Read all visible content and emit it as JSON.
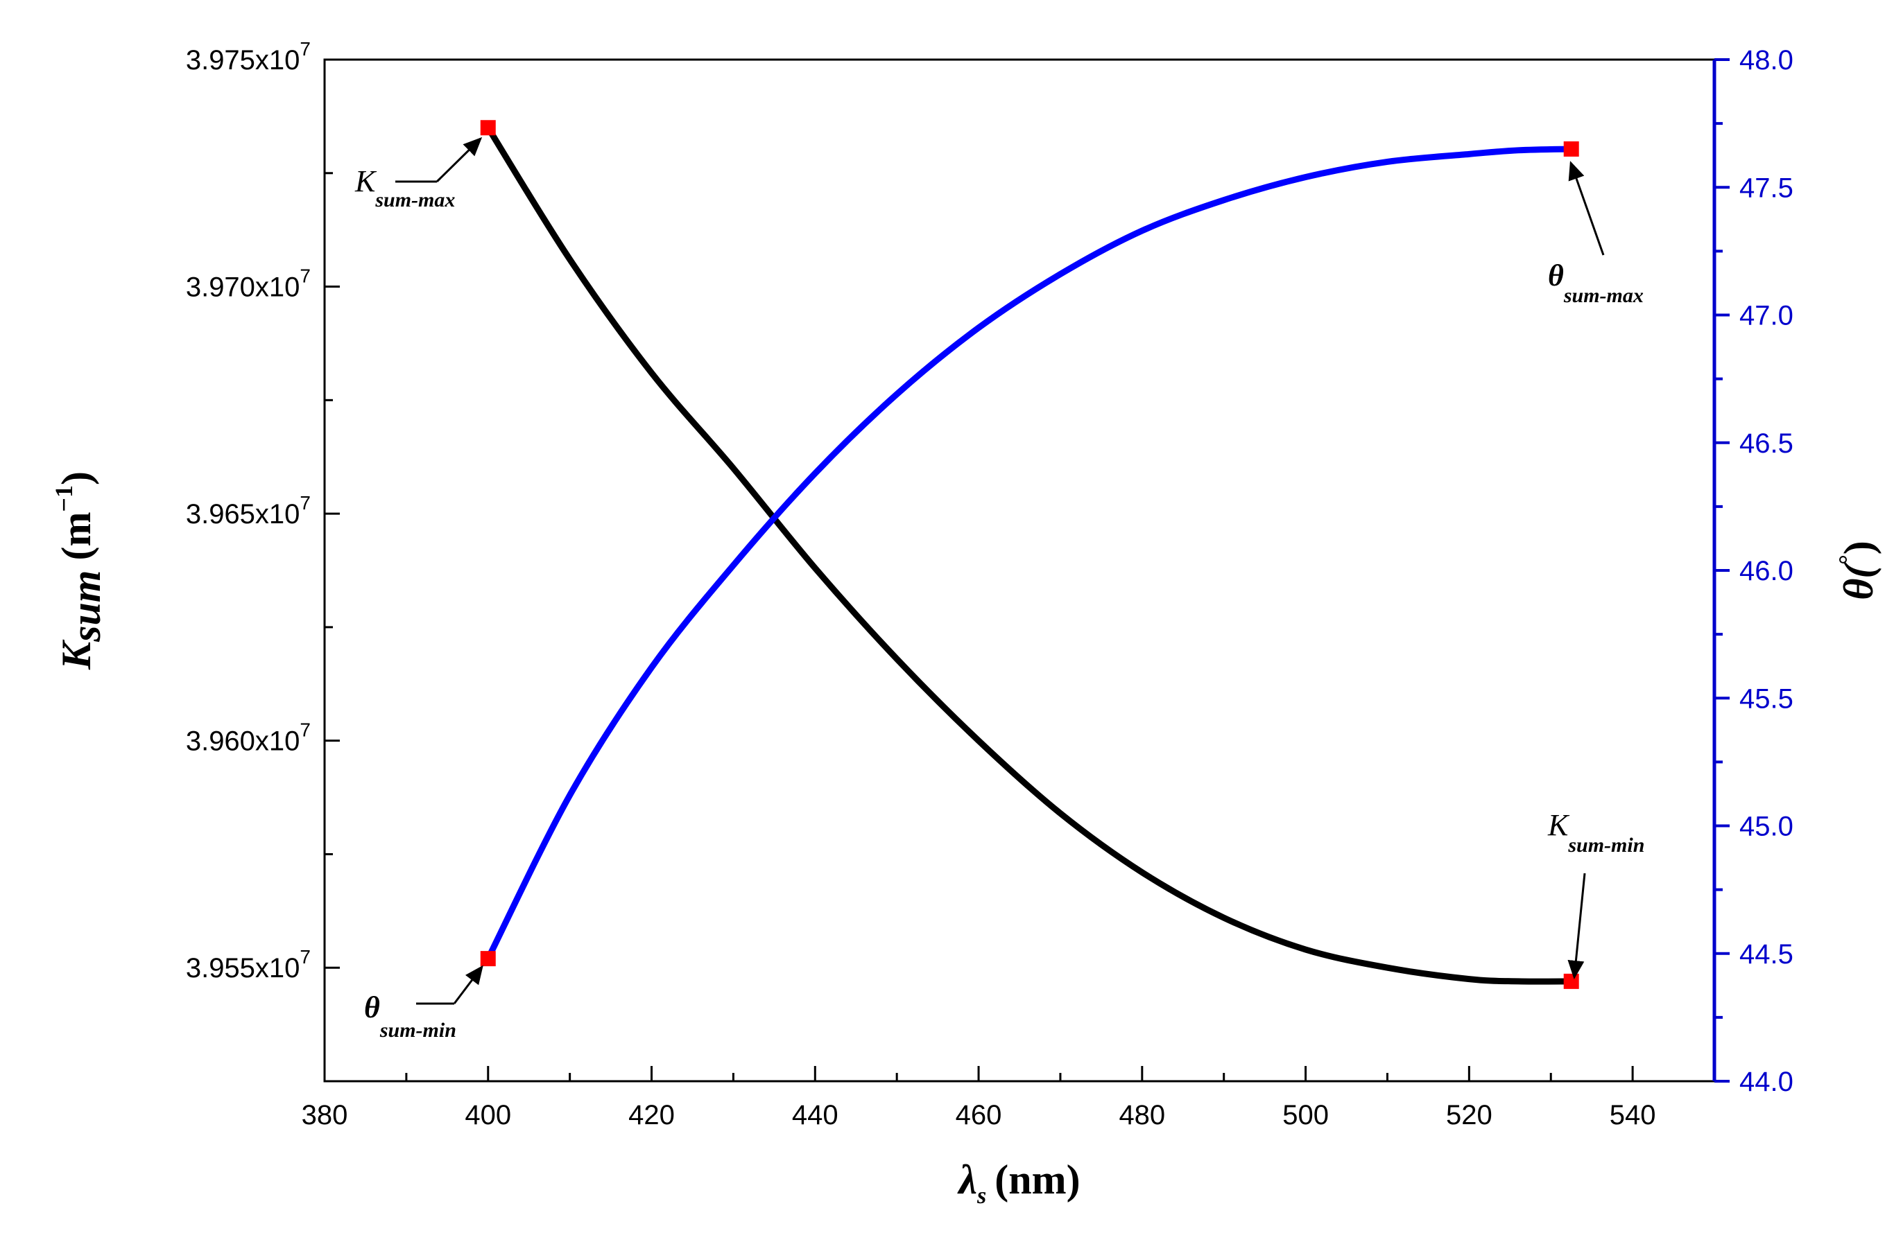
{
  "chart_data": {
    "type": "line",
    "x": [
      400,
      410,
      420,
      430,
      440,
      450,
      460,
      470,
      480,
      490,
      500,
      510,
      520,
      526,
      532.5
    ],
    "xlim": [
      380,
      550
    ],
    "xticks": [
      380,
      400,
      420,
      440,
      460,
      480,
      500,
      520,
      540
    ],
    "xlabel": "λ",
    "xlabel_sub": "s",
    "xlabel_unit": "(nm)",
    "ylim_left": [
      39525000,
      39750000
    ],
    "yticks_left": [
      {
        "value": 39550000,
        "label": "3.955x10",
        "exp": "7"
      },
      {
        "value": 39600000,
        "label": "3.960x10",
        "exp": "7"
      },
      {
        "value": 39650000,
        "label": "3.965x10",
        "exp": "7"
      },
      {
        "value": 39700000,
        "label": "3.970x10",
        "exp": "7"
      },
      {
        "value": 39750000,
        "label": "3.975x10",
        "exp": "7"
      }
    ],
    "ylabel_left": "K",
    "ylabel_left_sub": "sum",
    "ylabel_left_unit": "(m",
    "ylabel_left_exp": "−1",
    "ylabel_left_close": ")",
    "ylim_right": [
      44.0,
      48.0
    ],
    "yticks_right": [
      "44.0",
      "44.5",
      "45.0",
      "45.5",
      "46.0",
      "46.5",
      "47.0",
      "47.5",
      "48.0"
    ],
    "ylabel_right": "θ(",
    "ylabel_right_exp": "°",
    "ylabel_right_close": ")",
    "series": [
      {
        "name": "K_sum",
        "axis": "left",
        "color": "#000000",
        "values": [
          39735000,
          39706000,
          39681000,
          39660000,
          39638000,
          39618000,
          39600000,
          39584000,
          39571000,
          39561000,
          39554000,
          39550000,
          39547500,
          39547000,
          39547000
        ]
      },
      {
        "name": "theta",
        "axis": "right",
        "color": "#0000ff",
        "values": [
          44.48,
          45.12,
          45.62,
          46.02,
          46.38,
          46.69,
          46.95,
          47.16,
          47.33,
          47.45,
          47.54,
          47.6,
          47.63,
          47.645,
          47.65
        ]
      }
    ],
    "markers": [
      {
        "name": "k-max-marker",
        "x": 400,
        "axis": "left",
        "y": 39735000
      },
      {
        "name": "k-min-marker",
        "x": 532.5,
        "axis": "left",
        "y": 39547000
      },
      {
        "name": "theta-max-marker",
        "x": 532.5,
        "axis": "right",
        "y": 47.65
      },
      {
        "name": "theta-min-marker",
        "x": 400,
        "axis": "right",
        "y": 44.48
      }
    ],
    "annotations": [
      {
        "name": "k-sum-max-label",
        "main": "K",
        "sub": "sum-max"
      },
      {
        "name": "theta-sum-max-label",
        "main": "θ",
        "sub": "sum-max"
      },
      {
        "name": "k-sum-min-label",
        "main": "K",
        "sub": "sum-min"
      },
      {
        "name": "theta-sum-min-label",
        "main": "θ",
        "sub": "sum-min"
      }
    ],
    "marker_color": "#ff0000",
    "right_axis_color": "#0000cc"
  }
}
